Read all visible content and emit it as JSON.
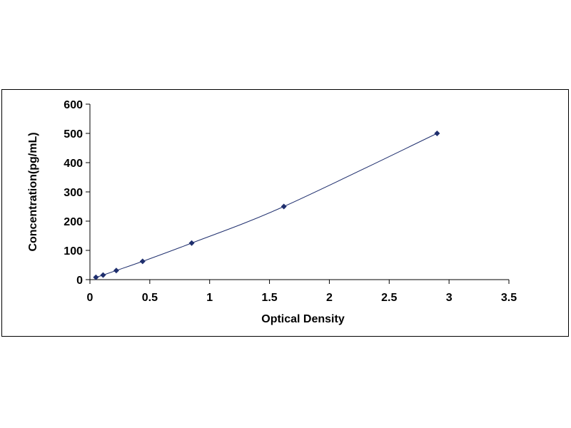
{
  "chart_data": {
    "type": "scatter",
    "title": "",
    "xlabel": "Optical Density",
    "ylabel": "Concentration(pg/mL)",
    "xlim": [
      0,
      3.5
    ],
    "ylim": [
      0,
      600
    ],
    "x_ticks": [
      "0",
      "0.5",
      "1",
      "1.5",
      "2",
      "2.5",
      "3",
      "3.5"
    ],
    "y_ticks": [
      "0",
      "100",
      "200",
      "300",
      "400",
      "500",
      "600"
    ],
    "grid": false,
    "legend": "none",
    "series": [
      {
        "x": [
          0.05,
          0.11,
          0.22,
          0.44,
          0.85,
          1.62,
          2.9
        ],
        "y": [
          7.8,
          15.6,
          31.25,
          62.5,
          125,
          250,
          500
        ],
        "marker": "diamond",
        "line": "smooth",
        "color": "#1f2f6e"
      }
    ],
    "colors": {
      "marker": "#1f2f6e",
      "line": "#1f2f6e",
      "axis": "#000000"
    }
  }
}
